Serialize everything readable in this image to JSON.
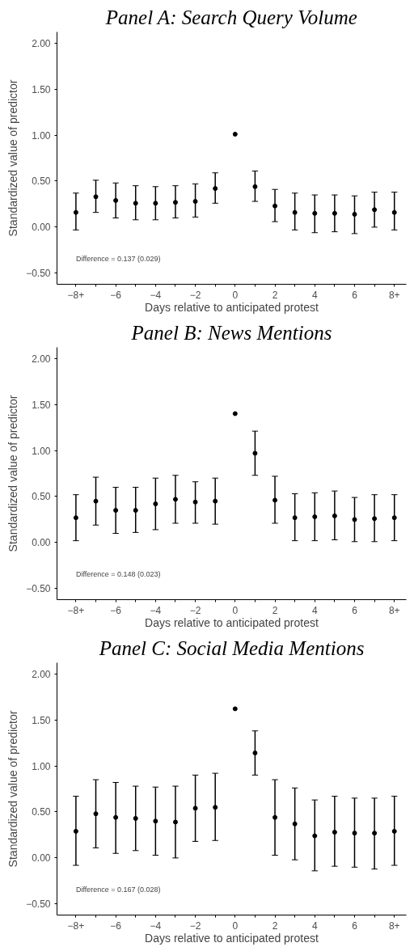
{
  "chart_data": [
    {
      "type": "scatter",
      "title": "Panel A: Search Query Volume",
      "xlabel": "Days relative to anticipated protest",
      "ylabel": "Standardized value of predictor",
      "x": [
        -8,
        -7,
        -6,
        -5,
        -4,
        -3,
        -2,
        -1,
        0,
        1,
        2,
        3,
        4,
        5,
        6,
        7,
        8
      ],
      "series": [
        {
          "color": "#000000",
          "values": [
            0.16,
            0.33,
            0.29,
            0.26,
            0.26,
            0.27,
            0.28,
            0.42,
            1.01,
            0.44,
            0.23,
            0.16,
            0.15,
            0.15,
            0.14,
            0.19,
            0.16
          ],
          "errors": [
            [
              -0.03,
              0.37
            ],
            [
              0.16,
              0.51
            ],
            [
              0.1,
              0.48
            ],
            [
              0.08,
              0.45
            ],
            [
              0.08,
              0.44
            ],
            [
              0.1,
              0.45
            ],
            [
              0.11,
              0.47
            ],
            [
              0.26,
              0.59
            ],
            null,
            [
              0.28,
              0.61
            ],
            [
              0.06,
              0.41
            ],
            [
              -0.03,
              0.37
            ],
            [
              -0.06,
              0.35
            ],
            [
              -0.05,
              0.35
            ],
            [
              -0.07,
              0.34
            ],
            [
              0.0,
              0.38
            ],
            [
              -0.03,
              0.38
            ]
          ]
        }
      ],
      "marker": "circle",
      "grid": false,
      "xlim": [
        -8.95,
        8.6
      ],
      "xticks": [
        {
          "value": -8,
          "label": "−8+"
        },
        {
          "value": -7,
          "label": null
        },
        {
          "value": -6,
          "label": "−6"
        },
        {
          "value": -5,
          "label": null
        },
        {
          "value": -4,
          "label": "−4"
        },
        {
          "value": -3,
          "label": null
        },
        {
          "value": -2,
          "label": "−2"
        },
        {
          "value": -1,
          "label": null
        },
        0,
        {
          "value": 1,
          "label": null
        },
        2,
        {
          "value": 3,
          "label": null
        },
        4,
        {
          "value": 5,
          "label": null
        },
        6,
        {
          "value": 7,
          "label": null
        },
        {
          "value": 8,
          "label": "8+"
        }
      ],
      "ylim": [
        -0.62,
        2.12
      ],
      "yticks": [
        {
          "value": -0.5,
          "label": "−0.50"
        },
        {
          "value": 0,
          "label": "0.00"
        },
        {
          "value": 0.5,
          "label": "0.50"
        },
        {
          "value": 1,
          "label": "1.00"
        },
        {
          "value": 1.5,
          "label": "1.50"
        },
        {
          "value": 2,
          "label": "2.00"
        }
      ],
      "annotations": [
        "Difference = 0.137 (0.029)"
      ]
    },
    {
      "type": "scatter",
      "title": "Panel B: News Mentions",
      "xlabel": "Days relative to anticipated protest",
      "ylabel": "Standardized value of predictor",
      "x": [
        -8,
        -7,
        -6,
        -5,
        -4,
        -3,
        -2,
        -1,
        0,
        1,
        2,
        3,
        4,
        5,
        6,
        7,
        8
      ],
      "series": [
        {
          "color": "#000000",
          "values": [
            0.27,
            0.45,
            0.35,
            0.35,
            0.42,
            0.47,
            0.44,
            0.45,
            1.4,
            0.97,
            0.46,
            0.27,
            0.28,
            0.29,
            0.25,
            0.26,
            0.27
          ],
          "errors": [
            [
              0.02,
              0.52
            ],
            [
              0.19,
              0.71
            ],
            [
              0.1,
              0.6
            ],
            [
              0.11,
              0.6
            ],
            [
              0.14,
              0.7
            ],
            [
              0.21,
              0.73
            ],
            [
              0.21,
              0.66
            ],
            [
              0.2,
              0.7
            ],
            null,
            [
              0.73,
              1.21
            ],
            [
              0.21,
              0.72
            ],
            [
              0.02,
              0.53
            ],
            [
              0.02,
              0.54
            ],
            [
              0.03,
              0.56
            ],
            [
              0.01,
              0.49
            ],
            [
              0.01,
              0.52
            ],
            [
              0.02,
              0.52
            ]
          ]
        }
      ],
      "marker": "circle",
      "grid": false,
      "xlim": [
        -8.95,
        8.6
      ],
      "xticks": [
        {
          "value": -8,
          "label": "−8+"
        },
        {
          "value": -7,
          "label": null
        },
        {
          "value": -6,
          "label": "−6"
        },
        {
          "value": -5,
          "label": null
        },
        {
          "value": -4,
          "label": "−4"
        },
        {
          "value": -3,
          "label": null
        },
        {
          "value": -2,
          "label": "−2"
        },
        {
          "value": -1,
          "label": null
        },
        0,
        {
          "value": 1,
          "label": null
        },
        2,
        {
          "value": 3,
          "label": null
        },
        4,
        {
          "value": 5,
          "label": null
        },
        6,
        {
          "value": 7,
          "label": null
        },
        {
          "value": 8,
          "label": "8+"
        }
      ],
      "ylim": [
        -0.62,
        2.12
      ],
      "yticks": [
        {
          "value": -0.5,
          "label": "−0.50"
        },
        {
          "value": 0,
          "label": "0.00"
        },
        {
          "value": 0.5,
          "label": "0.50"
        },
        {
          "value": 1,
          "label": "1.00"
        },
        {
          "value": 1.5,
          "label": "1.50"
        },
        {
          "value": 2,
          "label": "2.00"
        }
      ],
      "annotations": [
        "Difference = 0.148 (0.023)"
      ]
    },
    {
      "type": "scatter",
      "title": "Panel C: Social Media Mentions",
      "xlabel": "Days relative to anticipated protest",
      "ylabel": "Standardized value of predictor",
      "x": [
        -8,
        -7,
        -6,
        -5,
        -4,
        -3,
        -2,
        -1,
        0,
        1,
        2,
        3,
        4,
        5,
        6,
        7,
        8
      ],
      "series": [
        {
          "color": "#000000",
          "values": [
            0.29,
            0.48,
            0.44,
            0.43,
            0.4,
            0.39,
            0.54,
            0.55,
            1.62,
            1.14,
            0.44,
            0.37,
            0.24,
            0.28,
            0.27,
            0.27,
            0.29
          ],
          "errors": [
            [
              -0.08,
              0.67
            ],
            [
              0.11,
              0.85
            ],
            [
              0.05,
              0.82
            ],
            [
              0.08,
              0.78
            ],
            [
              0.03,
              0.77
            ],
            [
              0.0,
              0.78
            ],
            [
              0.18,
              0.9
            ],
            [
              0.19,
              0.92
            ],
            null,
            [
              0.9,
              1.38
            ],
            [
              0.03,
              0.85
            ],
            [
              -0.02,
              0.76
            ],
            [
              -0.14,
              0.63
            ],
            [
              -0.09,
              0.67
            ],
            [
              -0.1,
              0.65
            ],
            [
              -0.12,
              0.65
            ],
            [
              -0.08,
              0.67
            ]
          ]
        }
      ],
      "marker": "circle",
      "grid": false,
      "xlim": [
        -8.95,
        8.6
      ],
      "xticks": [
        {
          "value": -8,
          "label": "−8+"
        },
        {
          "value": -7,
          "label": null
        },
        {
          "value": -6,
          "label": "−6"
        },
        {
          "value": -5,
          "label": null
        },
        {
          "value": -4,
          "label": "−4"
        },
        {
          "value": -3,
          "label": null
        },
        {
          "value": -2,
          "label": "−2"
        },
        {
          "value": -1,
          "label": null
        },
        0,
        {
          "value": 1,
          "label": null
        },
        2,
        {
          "value": 3,
          "label": null
        },
        4,
        {
          "value": 5,
          "label": null
        },
        6,
        {
          "value": 7,
          "label": null
        },
        {
          "value": 8,
          "label": "8+"
        }
      ],
      "ylim": [
        -0.62,
        2.12
      ],
      "yticks": [
        {
          "value": -0.5,
          "label": "−0.50"
        },
        {
          "value": 0,
          "label": "0.00"
        },
        {
          "value": 0.5,
          "label": "0.50"
        },
        {
          "value": 1,
          "label": "1.00"
        },
        {
          "value": 1.5,
          "label": "1.50"
        },
        {
          "value": 2,
          "label": "2.00"
        }
      ],
      "annotations": [
        "Difference = 0.167 (0.028)"
      ]
    }
  ]
}
